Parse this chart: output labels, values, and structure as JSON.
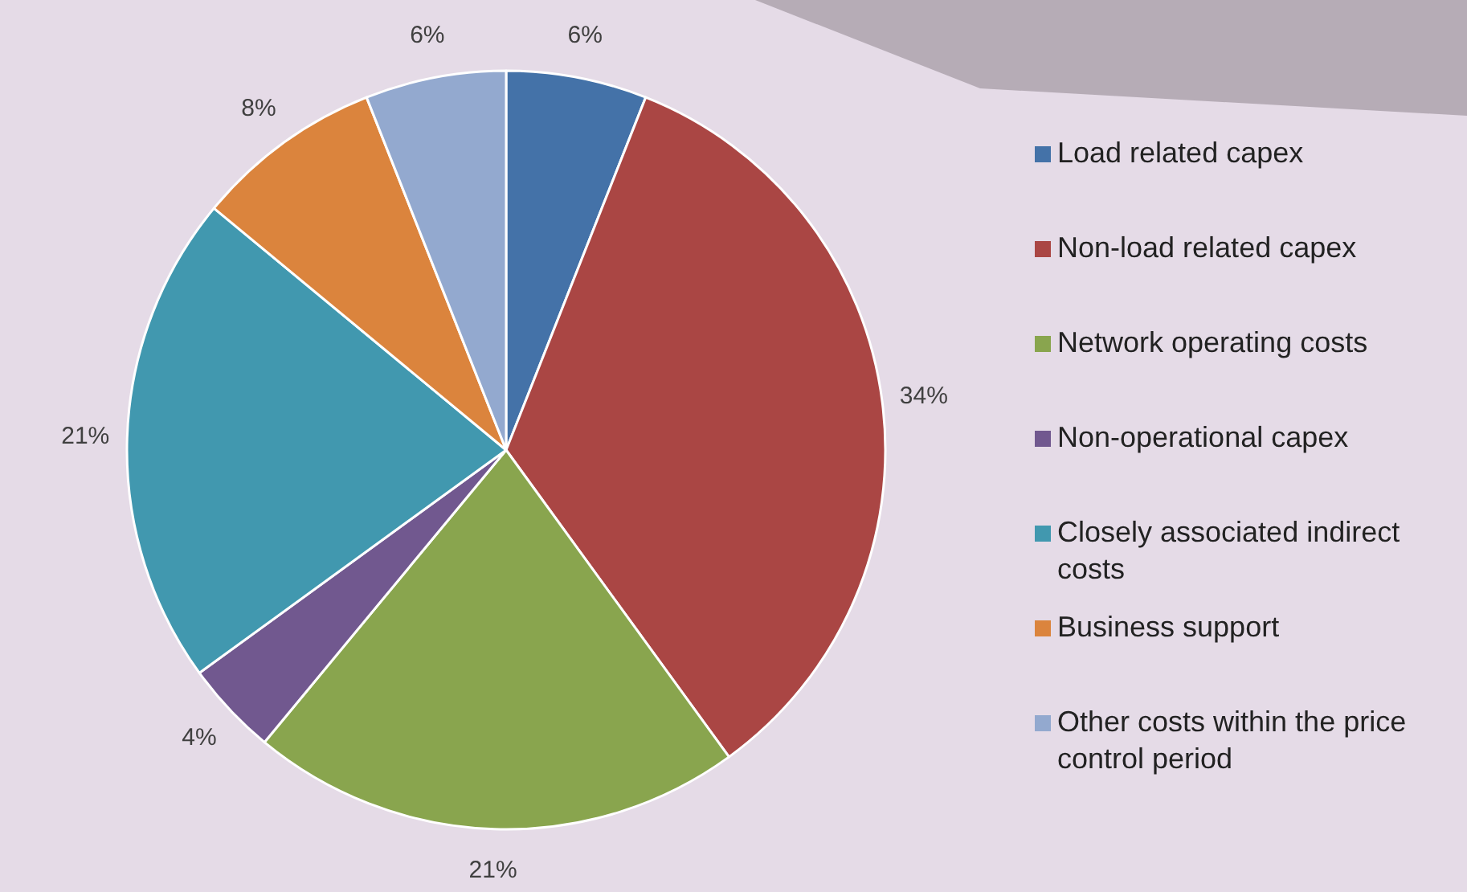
{
  "chart_data": {
    "type": "pie",
    "categories": [
      "Load related capex",
      "Non-load related capex",
      "Network operating costs",
      "Non-operational capex",
      "Closely associated indirect costs",
      "Business support",
      "Other costs within the price control period"
    ],
    "values": [
      6,
      34,
      21,
      4,
      21,
      8,
      6
    ],
    "colors": [
      "#4472a8",
      "#aa4644",
      "#89a54e",
      "#71588f",
      "#4198af",
      "#db843d",
      "#93a9cf"
    ],
    "value_labels": [
      "6%",
      "34%",
      "21%",
      "4%",
      "21%",
      "8%",
      "6%"
    ],
    "legend": "right"
  }
}
